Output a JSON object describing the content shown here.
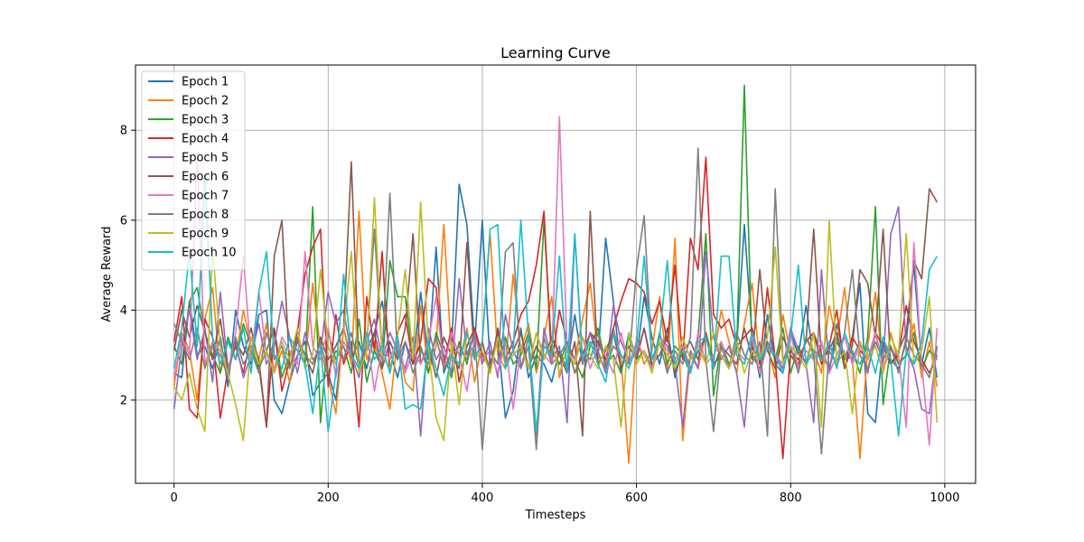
{
  "chart_data": {
    "type": "line",
    "title": "Learning Curve",
    "xlabel": "Timesteps",
    "ylabel": "Average Reward",
    "xlim": [
      -50,
      1040
    ],
    "ylim": [
      0.15,
      9.45
    ],
    "xticks": [
      0,
      200,
      400,
      600,
      800,
      1000
    ],
    "yticks": [
      2,
      4,
      6,
      8
    ],
    "xtick_labels": [
      "0",
      "200",
      "400",
      "600",
      "800",
      "1000"
    ],
    "ytick_labels": [
      "2",
      "4",
      "6",
      "8"
    ],
    "grid": true,
    "legend_position": "top-left",
    "x": [
      0,
      10,
      20,
      30,
      40,
      50,
      60,
      70,
      80,
      90,
      100,
      110,
      120,
      130,
      140,
      150,
      160,
      170,
      180,
      190,
      200,
      210,
      220,
      230,
      240,
      250,
      260,
      270,
      280,
      290,
      300,
      310,
      320,
      330,
      340,
      350,
      360,
      370,
      380,
      390,
      400,
      410,
      420,
      430,
      440,
      450,
      460,
      470,
      480,
      490,
      500,
      510,
      520,
      530,
      540,
      550,
      560,
      570,
      580,
      590,
      600,
      610,
      620,
      630,
      640,
      650,
      660,
      670,
      680,
      690,
      700,
      710,
      720,
      730,
      740,
      750,
      760,
      770,
      780,
      790,
      800,
      810,
      820,
      830,
      840,
      850,
      860,
      870,
      880,
      890,
      900,
      910,
      920,
      930,
      940,
      950,
      960,
      970,
      980,
      990
    ],
    "series": [
      {
        "name": "Epoch 1",
        "color": "#1f77b4",
        "values": [
          2.6,
          2.5,
          4.2,
          3.0,
          3.2,
          2.7,
          3.4,
          2.3,
          4.0,
          3.2,
          2.8,
          3.9,
          4.0,
          2.0,
          1.7,
          2.4,
          3.0,
          3.3,
          2.1,
          2.4,
          2.6,
          2.0,
          3.6,
          2.9,
          3.3,
          2.7,
          3.5,
          4.2,
          3.1,
          2.5,
          3.3,
          2.8,
          4.4,
          2.9,
          5.4,
          2.6,
          3.1,
          6.8,
          5.9,
          3.2,
          6.0,
          2.8,
          3.4,
          1.6,
          2.2,
          3.6,
          2.5,
          3.0,
          2.8,
          2.4,
          3.1,
          2.7,
          3.9,
          2.8,
          3.5,
          2.9,
          5.6,
          4.2,
          2.6,
          3.5,
          2.9,
          4.3,
          3.4,
          2.8,
          3.6,
          2.5,
          3.2,
          2.7,
          3.1,
          3.4,
          2.8,
          3.0,
          2.7,
          3.2,
          5.9,
          3.4,
          2.5,
          3.9,
          2.8,
          2.6,
          3.5,
          3.0,
          4.1,
          2.9,
          3.3,
          2.6,
          3.7,
          2.9,
          3.4,
          4.6,
          1.7,
          1.5,
          3.3,
          2.9,
          2.7,
          3.3,
          5.0,
          2.8,
          3.6,
          2.5
        ]
      },
      {
        "name": "Epoch 2",
        "color": "#ff7f0e",
        "values": [
          2.3,
          3.5,
          3.1,
          2.0,
          3.8,
          4.5,
          2.6,
          3.3,
          2.9,
          4.0,
          3.2,
          2.9,
          3.7,
          2.6,
          3.1,
          2.4,
          3.4,
          2.8,
          4.6,
          3.1,
          2.5,
          1.7,
          3.6,
          2.8,
          6.2,
          2.9,
          3.3,
          2.6,
          1.8,
          3.4,
          2.4,
          2.2,
          4.1,
          2.6,
          3.2,
          5.9,
          3.0,
          2.8,
          3.6,
          2.4,
          3.3,
          5.7,
          3.0,
          2.7,
          4.8,
          3.1,
          3.7,
          2.6,
          3.4,
          4.3,
          2.5,
          3.2,
          2.9,
          3.8,
          4.6,
          3.0,
          2.7,
          3.6,
          2.9,
          0.6,
          3.4,
          2.8,
          3.1,
          4.3,
          2.6,
          5.6,
          1.1,
          3.0,
          2.7,
          3.5,
          2.9,
          4.0,
          3.3,
          2.6,
          3.7,
          4.6,
          2.8,
          3.2,
          2.5,
          3.9,
          3.0,
          2.7,
          3.4,
          3.1,
          2.6,
          4.1,
          3.3,
          4.5,
          2.9,
          0.7,
          3.2,
          4.4,
          2.6,
          3.5,
          2.8,
          3.0,
          3.7,
          2.5,
          3.3,
          2.3
        ]
      },
      {
        "name": "Epoch 3",
        "color": "#2ca02c",
        "values": [
          3.2,
          2.8,
          4.2,
          4.5,
          3.5,
          3.0,
          2.6,
          3.4,
          2.9,
          3.7,
          3.2,
          2.7,
          3.1,
          3.6,
          2.5,
          3.0,
          3.4,
          2.8,
          6.3,
          1.5,
          3.5,
          2.9,
          3.2,
          2.6,
          3.8,
          2.4,
          3.1,
          2.7,
          5.1,
          4.3,
          4.3,
          2.9,
          3.2,
          2.6,
          3.5,
          3.0,
          2.5,
          3.3,
          2.8,
          3.6,
          2.9,
          3.1,
          2.6,
          3.4,
          2.8,
          3.0,
          3.5,
          2.7,
          6.0,
          3.1,
          2.8,
          3.3,
          2.9,
          2.5,
          3.2,
          3.6,
          2.8,
          3.0,
          2.6,
          3.4,
          2.9,
          3.1,
          2.7,
          3.5,
          2.8,
          3.2,
          3.0,
          2.6,
          3.4,
          5.7,
          2.1,
          3.3,
          2.8,
          3.1,
          9.0,
          3.0,
          2.7,
          3.3,
          2.9,
          3.6,
          2.6,
          3.2,
          2.8,
          3.5,
          3.0,
          2.7,
          3.3,
          2.9,
          3.1,
          2.6,
          3.4,
          6.3,
          1.9,
          3.2,
          2.8,
          3.0,
          3.5,
          2.7,
          3.1,
          2.9
        ]
      },
      {
        "name": "Epoch 4",
        "color": "#d62728",
        "values": [
          3.3,
          4.3,
          1.8,
          1.6,
          3.8,
          3.4,
          1.6,
          2.7,
          3.2,
          2.6,
          3.4,
          2.9,
          1.4,
          3.6,
          2.2,
          2.9,
          3.5,
          4.8,
          5.4,
          5.8,
          2.3,
          3.9,
          2.8,
          3.3,
          1.4,
          4.3,
          3.1,
          5.3,
          2.6,
          3.5,
          3.9,
          2.8,
          3.3,
          4.7,
          4.5,
          2.8,
          3.6,
          2.4,
          3.2,
          3.6,
          3.0,
          2.7,
          3.5,
          2.9,
          3.3,
          3.9,
          4.2,
          5.0,
          6.2,
          2.8,
          4.0,
          3.3,
          2.6,
          3.0,
          3.5,
          3.3,
          2.9,
          3.6,
          4.2,
          4.7,
          4.6,
          4.4,
          3.7,
          4.2,
          3.3,
          5.0,
          2.9,
          5.6,
          4.9,
          7.4,
          3.9,
          3.6,
          3.8,
          3.2,
          3.4,
          3.6,
          2.8,
          4.5,
          2.9,
          0.7,
          3.1,
          2.9,
          3.3,
          3.5,
          2.8,
          3.2,
          4.0,
          2.7,
          3.4,
          3.1,
          2.9,
          3.5,
          3.2,
          2.8,
          3.0,
          4.1,
          3.3,
          2.9,
          2.6,
          3.0
        ]
      },
      {
        "name": "Epoch 5",
        "color": "#9467bd",
        "values": [
          1.8,
          3.2,
          4.0,
          2.9,
          3.6,
          2.4,
          4.4,
          2.7,
          3.3,
          2.5,
          3.0,
          3.7,
          2.8,
          3.2,
          4.2,
          3.4,
          2.6,
          3.5,
          2.9,
          3.1,
          4.4,
          3.7,
          4.0,
          3.0,
          2.5,
          3.3,
          3.8,
          2.9,
          3.5,
          3.1,
          2.7,
          3.4,
          1.2,
          3.6,
          2.9,
          3.2,
          2.6,
          4.7,
          3.0,
          3.5,
          2.8,
          3.3,
          2.5,
          3.9,
          3.1,
          2.7,
          3.4,
          1.2,
          3.6,
          2.9,
          3.2,
          1.5,
          5.7,
          2.8,
          3.5,
          3.1,
          2.6,
          4.1,
          3.3,
          2.9,
          3.0,
          3.6,
          2.7,
          3.4,
          3.2,
          2.8,
          1.4,
          3.1,
          2.7,
          5.3,
          3.4,
          2.9,
          3.2,
          2.6,
          1.4,
          3.5,
          2.9,
          3.3,
          3.0,
          2.7,
          3.6,
          3.1,
          2.8,
          1.5,
          4.9,
          2.7,
          3.4,
          3.0,
          2.9,
          3.3,
          2.6,
          3.5,
          2.8,
          5.7,
          6.3,
          3.1,
          2.7,
          1.8,
          1.7,
          3.2
        ]
      },
      {
        "name": "Epoch 6",
        "color": "#8c564b",
        "values": [
          3.1,
          4.0,
          3.4,
          4.1,
          3.5,
          2.9,
          3.8,
          2.6,
          3.3,
          3.0,
          3.6,
          2.8,
          1.4,
          5.2,
          6.0,
          2.7,
          3.3,
          3.0,
          2.6,
          3.4,
          2.9,
          3.2,
          3.6,
          7.3,
          2.8,
          3.1,
          3.5,
          2.7,
          3.3,
          2.9,
          3.6,
          5.7,
          2.8,
          3.2,
          2.5,
          3.4,
          3.0,
          2.7,
          5.5,
          2.9,
          3.3,
          2.6,
          3.6,
          2.8,
          3.1,
          3.5,
          2.7,
          3.2,
          2.9,
          3.4,
          3.0,
          2.6,
          3.3,
          1.2,
          6.2,
          2.8,
          3.1,
          3.5,
          2.7,
          3.2,
          2.9,
          3.6,
          2.8,
          3.0,
          3.4,
          2.6,
          3.1,
          3.3,
          2.9,
          3.5,
          2.7,
          3.2,
          3.0,
          2.8,
          3.6,
          2.9,
          4.9,
          3.1,
          2.7,
          3.4,
          3.0,
          2.8,
          3.3,
          5.8,
          2.9,
          3.1,
          3.5,
          2.7,
          3.2,
          4.9,
          4.6,
          3.4,
          5.8,
          2.8,
          3.1,
          3.5,
          5.1,
          4.7,
          6.7,
          6.4
        ]
      },
      {
        "name": "Epoch 7",
        "color": "#e377c2",
        "values": [
          2.5,
          3.4,
          3.0,
          7.5,
          2.8,
          3.3,
          3.1,
          2.6,
          3.5,
          5.2,
          2.9,
          4.4,
          3.0,
          2.7,
          3.4,
          3.1,
          2.8,
          5.3,
          3.2,
          2.9,
          3.6,
          2.5,
          3.3,
          3.0,
          2.7,
          3.5,
          2.2,
          3.2,
          2.9,
          3.4,
          2.6,
          3.1,
          2.8,
          3.3,
          4.3,
          2.7,
          3.5,
          3.0,
          2.2,
          3.4,
          2.9,
          3.1,
          2.6,
          3.3,
          1.8,
          3.2,
          2.7,
          3.5,
          3.0,
          2.8,
          8.3,
          3.1,
          2.9,
          3.4,
          2.7,
          3.2,
          3.0,
          2.6,
          3.5,
          2.8,
          3.3,
          3.0,
          2.7,
          3.4,
          3.1,
          2.9,
          3.2,
          2.6,
          3.5,
          2.8,
          3.0,
          3.3,
          2.7,
          3.1,
          2.9,
          3.4,
          2.6,
          3.2,
          3.0,
          2.8,
          3.5,
          2.7,
          3.1,
          2.9,
          3.3,
          2.6,
          3.0,
          3.4,
          2.8,
          3.2,
          2.9,
          3.5,
          2.7,
          3.1,
          3.0,
          1.4,
          5.5,
          2.8,
          1.0,
          3.6
        ]
      },
      {
        "name": "Epoch 8",
        "color": "#7f7f7f",
        "values": [
          3.7,
          3.3,
          2.9,
          3.6,
          2.7,
          3.2,
          3.0,
          2.5,
          3.4,
          2.8,
          3.1,
          2.6,
          3.5,
          2.9,
          3.2,
          2.7,
          3.4,
          3.0,
          2.8,
          3.3,
          2.6,
          3.1,
          2.9,
          3.5,
          2.7,
          3.2,
          5.8,
          3.0,
          6.6,
          2.9,
          3.3,
          2.6,
          3.1,
          2.8,
          3.4,
          2.7,
          3.0,
          3.2,
          2.9,
          3.5,
          0.9,
          3.1,
          2.8,
          5.3,
          5.5,
          2.7,
          3.2,
          0.9,
          3.4,
          2.8,
          3.0,
          3.3,
          2.6,
          3.1,
          2.9,
          3.5,
          2.7,
          3.2,
          3.0,
          2.8,
          4.9,
          6.1,
          2.9,
          3.3,
          2.6,
          3.1,
          2.8,
          3.4,
          7.6,
          2.9,
          1.3,
          3.2,
          2.7,
          3.5,
          3.0,
          2.8,
          3.3,
          1.2,
          6.7,
          2.9,
          3.2,
          2.6,
          3.4,
          3.0,
          0.8,
          3.1,
          2.8,
          3.5,
          4.9,
          3.0,
          2.7,
          3.3,
          2.9,
          3.2,
          2.6,
          3.4,
          3.0,
          2.8,
          2.5,
          3.2
        ]
      },
      {
        "name": "Epoch 9",
        "color": "#bcbd22",
        "values": [
          2.3,
          2.0,
          2.6,
          1.8,
          1.3,
          5.4,
          3.2,
          2.6,
          1.9,
          1.1,
          3.4,
          2.8,
          3.1,
          2.6,
          3.3,
          2.9,
          3.6,
          2.7,
          3.0,
          4.9,
          3.2,
          2.8,
          3.5,
          5.3,
          2.6,
          3.1,
          6.5,
          3.0,
          2.7,
          3.4,
          4.9,
          2.9,
          6.4,
          3.2,
          1.6,
          1.1,
          3.3,
          1.9,
          3.5,
          2.9,
          3.1,
          2.6,
          3.4,
          2.8,
          3.0,
          3.2,
          2.7,
          3.5,
          2.9,
          3.3,
          2.6,
          3.1,
          2.8,
          3.4,
          3.0,
          2.7,
          3.2,
          2.9,
          1.4,
          3.5,
          2.8,
          3.1,
          2.6,
          3.3,
          3.0,
          2.7,
          3.4,
          2.9,
          3.2,
          2.8,
          3.5,
          3.0,
          2.7,
          3.3,
          2.6,
          3.1,
          2.9,
          3.4,
          5.4,
          2.8,
          3.2,
          3.0,
          2.7,
          3.5,
          1.4,
          6.0,
          2.8,
          3.1,
          1.7,
          3.3,
          2.9,
          3.2,
          2.6,
          3.4,
          3.0,
          5.7,
          2.8,
          3.1,
          4.3,
          1.5
        ]
      },
      {
        "name": "Epoch 10",
        "color": "#17becf",
        "values": [
          2.7,
          3.6,
          5.3,
          3.2,
          7.0,
          3.4,
          2.8,
          3.3,
          2.9,
          3.6,
          2.6,
          4.4,
          5.3,
          3.0,
          2.7,
          3.4,
          3.1,
          2.8,
          1.7,
          3.2,
          1.3,
          2.6,
          4.8,
          3.0,
          2.7,
          3.5,
          2.9,
          3.2,
          2.6,
          3.4,
          1.8,
          1.9,
          1.8,
          3.3,
          2.7,
          2.1,
          3.0,
          2.8,
          3.5,
          2.9,
          3.3,
          5.8,
          5.9,
          2.7,
          3.1,
          6.0,
          3.4,
          1.3,
          3.2,
          3.0,
          5.2,
          2.6,
          5.7,
          2.9,
          3.3,
          2.8,
          2.4,
          3.5,
          3.0,
          2.7,
          3.2,
          5.2,
          2.9,
          3.4,
          5.1,
          2.8,
          3.1,
          2.6,
          3.3,
          3.4,
          2.7,
          5.2,
          5.2,
          3.0,
          2.8,
          3.5,
          2.9,
          3.2,
          3.0,
          2.6,
          3.4,
          5.0,
          2.8,
          3.1,
          2.9,
          3.3,
          2.7,
          3.5,
          3.0,
          2.8,
          3.2,
          2.6,
          3.4,
          2.9,
          1.2,
          3.1,
          2.8,
          3.3,
          4.9,
          5.2
        ]
      }
    ]
  }
}
